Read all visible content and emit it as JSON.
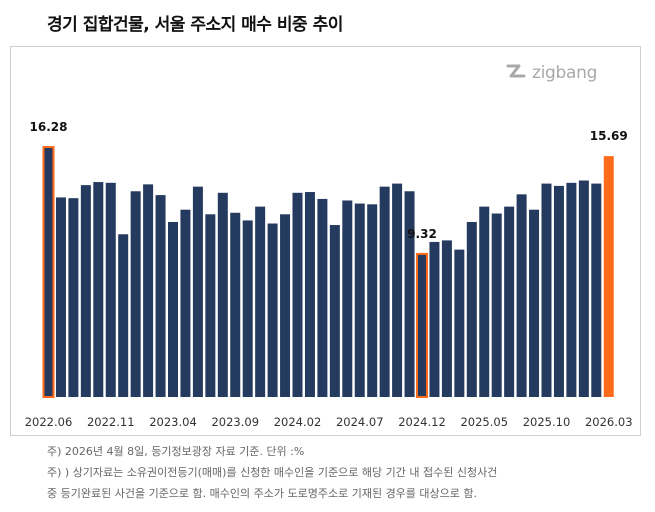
{
  "title": "경기 집합건물, 서울 주소지 매수 비중 추이",
  "logo": {
    "text": "zigbang",
    "icon": "zigbang-logo-icon"
  },
  "colors": {
    "bar": "#243a5e",
    "highlight": "#ff6b1a",
    "highlight_outline": "#ff6b1a"
  },
  "notes": [
    "주)  2026년 4월 8일, 등기정보광장 자료 기준. 단위 :%",
    "주) ) 상기자료는 소유권이전등기(매매)를 신청한 매수인을 기준으로 해당 기간 내 접수된 신청사건",
    "중 등기완료된 사건을 기준으로 함.  매수인의 주소가 도로명주소로 기재된 경우를 대상으로 함."
  ],
  "chart_data": {
    "type": "bar",
    "title": "경기 집합건물, 서울 주소지 매수 비중 추이",
    "xlabel": "",
    "ylabel": "",
    "ylim": [
      0,
      17
    ],
    "grid": false,
    "legend": "none",
    "tick_labels": [
      "2022.06",
      "2022.11",
      "2023.04",
      "2023.09",
      "2024.02",
      "2024.07",
      "2024.12",
      "2025.05",
      "2025.10",
      "2026.03"
    ],
    "categories": [
      "2022.06",
      "2022.07",
      "2022.08",
      "2022.09",
      "2022.10",
      "2022.11",
      "2022.12",
      "2023.01",
      "2023.02",
      "2023.03",
      "2023.04",
      "2023.05",
      "2023.06",
      "2023.07",
      "2023.08",
      "2023.09",
      "2023.10",
      "2023.11",
      "2023.12",
      "2024.01",
      "2024.02",
      "2024.03",
      "2024.04",
      "2024.05",
      "2024.06",
      "2024.07",
      "2024.08",
      "2024.09",
      "2024.10",
      "2024.11",
      "2024.12",
      "2025.01",
      "2025.02",
      "2025.03",
      "2025.04",
      "2025.05",
      "2025.06",
      "2025.07",
      "2025.08",
      "2025.09",
      "2025.10",
      "2025.11",
      "2025.12",
      "2026.01",
      "2026.02",
      "2026.03"
    ],
    "values": [
      16.28,
      13.0,
      12.95,
      13.8,
      14.0,
      13.95,
      10.6,
      13.4,
      13.85,
      13.15,
      11.4,
      12.2,
      13.7,
      11.9,
      13.3,
      12.0,
      11.5,
      12.4,
      11.3,
      11.9,
      13.3,
      13.35,
      12.9,
      11.2,
      12.8,
      12.6,
      12.55,
      13.7,
      13.9,
      13.4,
      9.32,
      10.1,
      10.2,
      9.6,
      11.4,
      12.4,
      11.95,
      12.4,
      13.2,
      12.2,
      13.9,
      13.75,
      13.95,
      14.1,
      13.9,
      15.69
    ],
    "highlights": [
      {
        "category": "2022.06",
        "value": 16.28,
        "label": "16.28",
        "style": "outline"
      },
      {
        "category": "2024.12",
        "value": 9.32,
        "label": "9.32",
        "style": "outline"
      },
      {
        "category": "2026.03",
        "value": 15.69,
        "label": "15.69",
        "style": "fill"
      }
    ]
  }
}
